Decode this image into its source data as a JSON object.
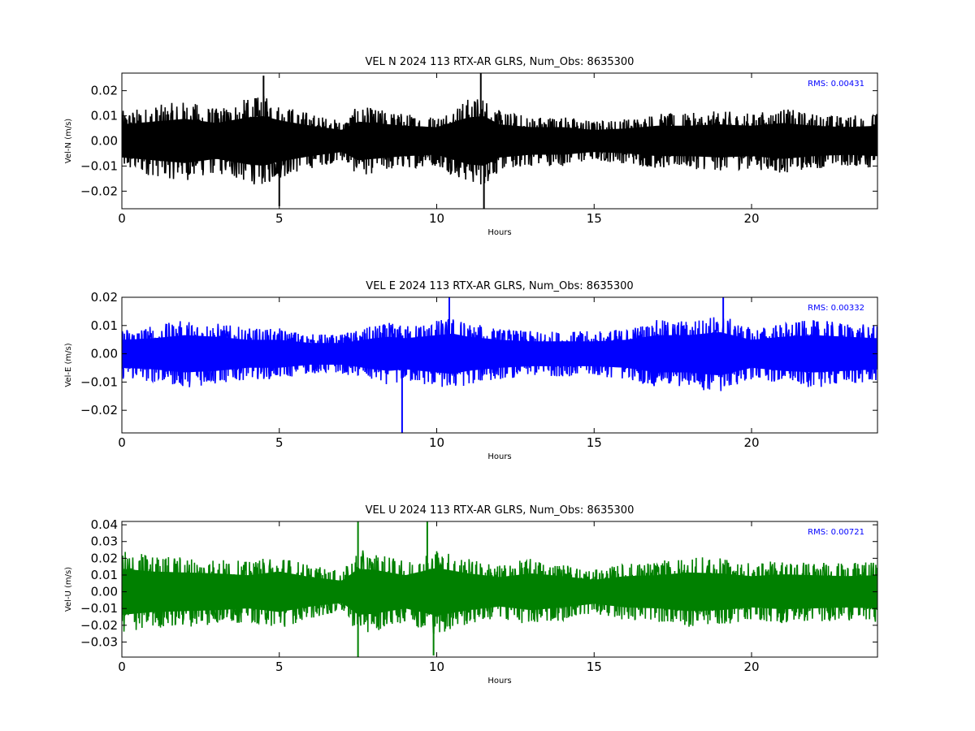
{
  "chart_data": [
    {
      "type": "line",
      "title": "VEL N 2024 113 RTX-AR  GLRS, Num_Obs: 8635300",
      "xlabel": "Hours",
      "ylabel": "Vel-N (m/s)",
      "xlim": [
        0,
        24
      ],
      "ylim": [
        -0.027,
        0.027
      ],
      "xticks": [
        "0",
        "5",
        "10",
        "15",
        "20"
      ],
      "yticks": [
        "0.02",
        "0.01",
        "0.00",
        "−0.01",
        "−0.02"
      ],
      "ytick_values": [
        0.02,
        0.01,
        0.0,
        -0.01,
        -0.02
      ],
      "color": "#000000",
      "rms_text": "RMS:  0.00431",
      "rms_color": "#0000ff",
      "envelope": {
        "x": [
          0,
          1,
          2,
          3,
          4,
          4.5,
          5,
          6,
          7,
          7.5,
          8,
          9,
          10,
          11,
          11.5,
          12,
          13,
          14,
          15,
          16,
          17,
          18,
          19,
          20,
          21,
          22,
          23,
          24
        ],
        "amp": [
          0.012,
          0.014,
          0.016,
          0.013,
          0.017,
          0.018,
          0.015,
          0.011,
          0.008,
          0.014,
          0.013,
          0.011,
          0.01,
          0.017,
          0.018,
          0.012,
          0.01,
          0.01,
          0.008,
          0.009,
          0.011,
          0.011,
          0.012,
          0.011,
          0.013,
          0.011,
          0.01,
          0.011
        ]
      },
      "spikes": [
        {
          "x": 11.4,
          "y": 0.027
        },
        {
          "x": 11.5,
          "y": -0.027
        },
        {
          "x": 4.5,
          "y": 0.026
        },
        {
          "x": 5.0,
          "y": -0.026
        }
      ]
    },
    {
      "type": "line",
      "title": "VEL E 2024 113 RTX-AR  GLRS, Num_Obs: 8635300",
      "xlabel": "Hours",
      "ylabel": "Vel-E (m/s)",
      "xlim": [
        0,
        24
      ],
      "ylim": [
        -0.028,
        0.02
      ],
      "xticks": [
        "0",
        "5",
        "10",
        "15",
        "20"
      ],
      "yticks": [
        "0.02",
        "0.01",
        "0.00",
        "−0.01",
        "−0.02"
      ],
      "ytick_values": [
        0.02,
        0.01,
        0.0,
        -0.01,
        -0.02
      ],
      "color": "#0000ff",
      "rms_text": "RMS:  0.00332",
      "rms_color": "#0000ff",
      "envelope": {
        "x": [
          0,
          1,
          2,
          3,
          4,
          5,
          6,
          7,
          8,
          8.5,
          9,
          10,
          10.5,
          11,
          12,
          13,
          14,
          15,
          16,
          17,
          18,
          19,
          20,
          21,
          22,
          23,
          24
        ],
        "amp": [
          0.009,
          0.01,
          0.012,
          0.011,
          0.009,
          0.009,
          0.007,
          0.007,
          0.01,
          0.011,
          0.01,
          0.012,
          0.013,
          0.011,
          0.009,
          0.008,
          0.008,
          0.008,
          0.009,
          0.012,
          0.012,
          0.014,
          0.009,
          0.011,
          0.012,
          0.011,
          0.01
        ]
      },
      "spikes": [
        {
          "x": 8.9,
          "y": -0.028
        },
        {
          "x": 10.4,
          "y": 0.02
        },
        {
          "x": 19.1,
          "y": 0.02
        }
      ]
    },
    {
      "type": "line",
      "title": "VEL U 2024 113 RTX-AR  GLRS, Num_Obs: 8635300",
      "xlabel": "Hours",
      "ylabel": "Vel-U (m/s)",
      "xlim": [
        0,
        24
      ],
      "ylim": [
        -0.039,
        0.042
      ],
      "xticks": [
        "0",
        "5",
        "10",
        "15",
        "20"
      ],
      "yticks": [
        "0.04",
        "0.03",
        "0.02",
        "0.01",
        "0.00",
        "−0.01",
        "−0.02",
        "−0.03"
      ],
      "ytick_values": [
        0.04,
        0.03,
        0.02,
        0.01,
        0.0,
        -0.01,
        -0.02,
        -0.03
      ],
      "color": "#008000",
      "rms_text": "RMS:  0.00721",
      "rms_color": "#0000ff",
      "envelope": {
        "x": [
          0,
          1,
          2,
          3,
          4,
          5,
          6,
          7,
          7.5,
          8,
          9,
          10,
          11,
          12,
          13,
          14,
          15,
          16,
          17,
          18,
          19,
          20,
          21,
          22,
          23,
          24
        ],
        "amp": [
          0.025,
          0.022,
          0.021,
          0.02,
          0.018,
          0.022,
          0.016,
          0.012,
          0.025,
          0.024,
          0.018,
          0.026,
          0.02,
          0.016,
          0.02,
          0.017,
          0.013,
          0.017,
          0.018,
          0.021,
          0.02,
          0.017,
          0.019,
          0.018,
          0.017,
          0.018
        ]
      },
      "spikes": [
        {
          "x": 7.5,
          "y": 0.042
        },
        {
          "x": 7.5,
          "y": -0.039
        },
        {
          "x": 9.7,
          "y": 0.042
        },
        {
          "x": 9.9,
          "y": -0.038
        }
      ]
    }
  ]
}
